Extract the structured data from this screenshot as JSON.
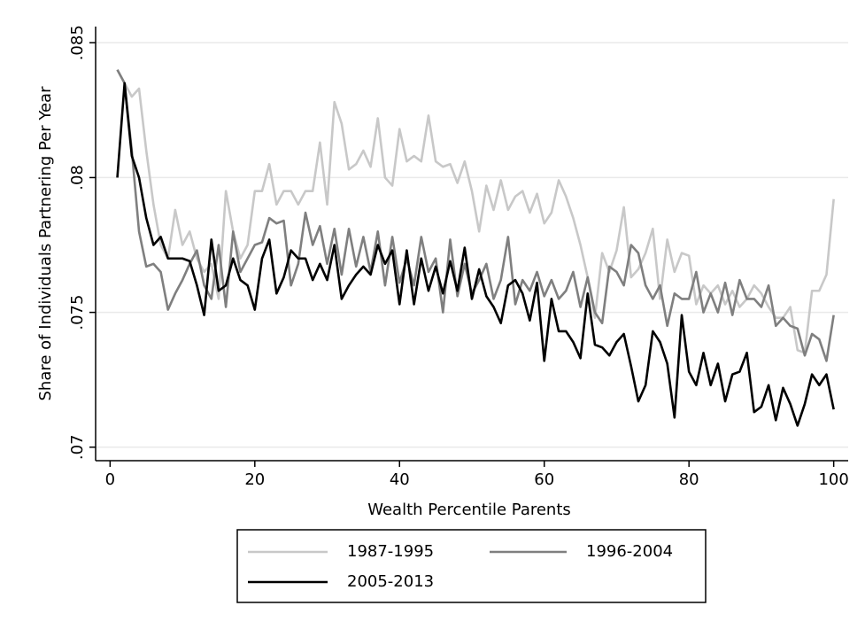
{
  "chart_data": {
    "type": "line",
    "x_label": "Wealth Percentile Parents",
    "y_label": "Share of Individuals Partnering Per Year",
    "x": [
      1,
      2,
      3,
      4,
      5,
      6,
      7,
      8,
      9,
      10,
      11,
      12,
      13,
      14,
      15,
      16,
      17,
      18,
      19,
      20,
      21,
      22,
      23,
      24,
      25,
      26,
      27,
      28,
      29,
      30,
      31,
      32,
      33,
      34,
      35,
      36,
      37,
      38,
      39,
      40,
      41,
      42,
      43,
      44,
      45,
      46,
      47,
      48,
      49,
      50,
      51,
      52,
      53,
      54,
      55,
      56,
      57,
      58,
      59,
      60,
      61,
      62,
      63,
      64,
      65,
      66,
      67,
      68,
      69,
      70,
      71,
      72,
      73,
      74,
      75,
      76,
      77,
      78,
      79,
      80,
      81,
      82,
      83,
      84,
      85,
      86,
      87,
      88,
      89,
      90,
      91,
      92,
      93,
      94,
      95,
      96,
      97,
      98,
      99,
      100
    ],
    "series": [
      {
        "name": "1987-1995",
        "color": "#c8c8c8",
        "values": [
          0.084,
          0.0835,
          0.083,
          0.0833,
          0.081,
          0.079,
          0.0775,
          0.077,
          0.0788,
          0.0775,
          0.078,
          0.077,
          0.0765,
          0.0768,
          0.0755,
          0.0795,
          0.078,
          0.077,
          0.0775,
          0.0795,
          0.0795,
          0.0805,
          0.079,
          0.0795,
          0.0795,
          0.079,
          0.0795,
          0.0795,
          0.0813,
          0.079,
          0.0828,
          0.082,
          0.0803,
          0.0805,
          0.081,
          0.0804,
          0.0822,
          0.08,
          0.0797,
          0.0818,
          0.0806,
          0.0808,
          0.0806,
          0.0823,
          0.0806,
          0.0804,
          0.0805,
          0.0798,
          0.0806,
          0.0795,
          0.078,
          0.0797,
          0.0788,
          0.0799,
          0.0788,
          0.0793,
          0.0795,
          0.0787,
          0.0794,
          0.0783,
          0.0787,
          0.0799,
          0.0793,
          0.0785,
          0.0775,
          0.0763,
          0.0748,
          0.0772,
          0.0765,
          0.0773,
          0.0789,
          0.0763,
          0.0766,
          0.0772,
          0.0781,
          0.0755,
          0.0777,
          0.0765,
          0.0772,
          0.0771,
          0.0753,
          0.076,
          0.0757,
          0.076,
          0.0753,
          0.0758,
          0.0752,
          0.0755,
          0.076,
          0.0757,
          0.0752,
          0.0748,
          0.0748,
          0.0752,
          0.0736,
          0.0735,
          0.0758,
          0.0758,
          0.0764,
          0.0792
        ]
      },
      {
        "name": "1996-2004",
        "color": "#7f7f7f",
        "values": [
          0.084,
          0.0835,
          0.081,
          0.078,
          0.0767,
          0.0768,
          0.0765,
          0.0751,
          0.0757,
          0.0762,
          0.0768,
          0.0773,
          0.076,
          0.0755,
          0.0775,
          0.0752,
          0.078,
          0.0765,
          0.077,
          0.0775,
          0.0776,
          0.0785,
          0.0783,
          0.0784,
          0.076,
          0.0768,
          0.0787,
          0.0775,
          0.0782,
          0.0768,
          0.0781,
          0.0764,
          0.0781,
          0.0767,
          0.0778,
          0.0765,
          0.078,
          0.076,
          0.0778,
          0.0761,
          0.077,
          0.076,
          0.0778,
          0.0765,
          0.077,
          0.075,
          0.0777,
          0.0756,
          0.0768,
          0.0757,
          0.0762,
          0.0768,
          0.0755,
          0.0762,
          0.0778,
          0.0753,
          0.0762,
          0.0758,
          0.0765,
          0.0756,
          0.0762,
          0.0755,
          0.0758,
          0.0765,
          0.0752,
          0.0763,
          0.075,
          0.0746,
          0.0767,
          0.0765,
          0.076,
          0.0775,
          0.0772,
          0.076,
          0.0755,
          0.076,
          0.0745,
          0.0757,
          0.0755,
          0.0755,
          0.0765,
          0.075,
          0.0757,
          0.075,
          0.0761,
          0.0749,
          0.0762,
          0.0755,
          0.0755,
          0.0752,
          0.076,
          0.0745,
          0.0748,
          0.0745,
          0.0744,
          0.0734,
          0.0742,
          0.074,
          0.0732,
          0.0749
        ]
      },
      {
        "name": "2005-2013",
        "color": "#000000",
        "values": [
          0.08,
          0.0835,
          0.0808,
          0.08,
          0.0785,
          0.0775,
          0.0778,
          0.077,
          0.077,
          0.077,
          0.0769,
          0.076,
          0.0749,
          0.0777,
          0.0758,
          0.076,
          0.077,
          0.0762,
          0.076,
          0.0751,
          0.077,
          0.0777,
          0.0757,
          0.0763,
          0.0773,
          0.077,
          0.077,
          0.0762,
          0.0768,
          0.0762,
          0.0775,
          0.0755,
          0.076,
          0.0764,
          0.0767,
          0.0764,
          0.0775,
          0.0768,
          0.0773,
          0.0753,
          0.0773,
          0.0753,
          0.077,
          0.0758,
          0.0767,
          0.0757,
          0.0769,
          0.0758,
          0.0774,
          0.0755,
          0.0766,
          0.0756,
          0.0752,
          0.0746,
          0.076,
          0.0762,
          0.0757,
          0.0747,
          0.0761,
          0.0732,
          0.0755,
          0.0743,
          0.0743,
          0.0739,
          0.0733,
          0.0757,
          0.0738,
          0.0737,
          0.0734,
          0.0739,
          0.0742,
          0.073,
          0.0717,
          0.0723,
          0.0743,
          0.0739,
          0.0731,
          0.0711,
          0.0749,
          0.0728,
          0.0723,
          0.0735,
          0.0723,
          0.0731,
          0.0717,
          0.0727,
          0.0728,
          0.0735,
          0.0713,
          0.0715,
          0.0723,
          0.071,
          0.0722,
          0.0716,
          0.0708,
          0.0716,
          0.0727,
          0.0723,
          0.0727,
          0.0714
        ]
      }
    ],
    "xlim": [
      -2,
      102
    ],
    "xticks": [
      0,
      20,
      40,
      60,
      80,
      100
    ],
    "ylim": [
      0.0695,
      0.0856
    ],
    "yticks": [
      {
        "value": 0.07,
        "label": ".07"
      },
      {
        "value": 0.075,
        "label": ".075"
      },
      {
        "value": 0.08,
        "label": ".08"
      },
      {
        "value": 0.085,
        "label": ".085"
      }
    ],
    "grid": true
  }
}
